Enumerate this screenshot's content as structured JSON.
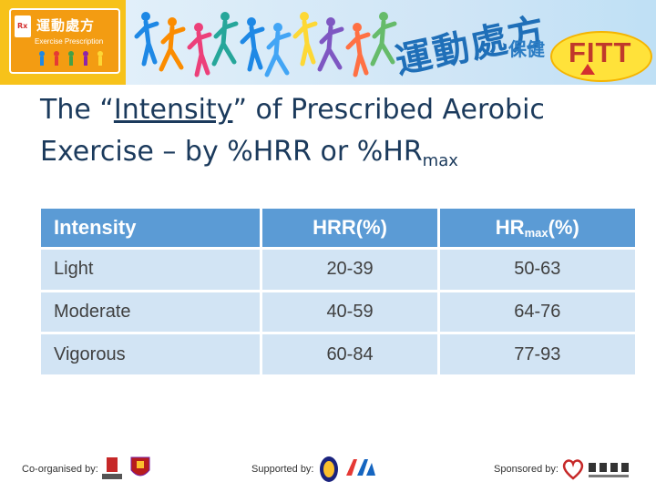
{
  "banner": {
    "logo_title": "運動處方",
    "logo_subtitle": "Exercise Prescription",
    "slogan_large": "運動處方",
    "slogan_small": "保健",
    "fitt": "FITT",
    "figure_colors": [
      "#1e88e5",
      "#fb8c00",
      "#ec407a",
      "#26a69a",
      "#1e88e5",
      "#42a5f5",
      "#fdd835",
      "#7e57c2",
      "#ff7043",
      "#66bb6a"
    ]
  },
  "title": {
    "line1_prefix": "The “",
    "line1_underlined": "Intensity",
    "line1_suffix": "” of Prescribed Aerobic",
    "line2": "Exercise – by %HRR or %HR",
    "line2_sub": "max"
  },
  "table": {
    "headers": {
      "intensity": "Intensity",
      "hrr": "HRR(%)",
      "hrmax_main": "HR",
      "hrmax_sub": "max",
      "hrmax_unit": "(%)"
    },
    "rows": [
      {
        "intensity": "Light",
        "hrr": "20-39",
        "hrmax": "50-63"
      },
      {
        "intensity": "Moderate",
        "hrr": "40-59",
        "hrmax": "64-76"
      },
      {
        "intensity": "Vigorous",
        "hrr": "60-84",
        "hrmax": "77-93"
      }
    ]
  },
  "footer": {
    "co_organised": "Co-organised by:",
    "supported": "Supported by:",
    "sponsored": "Sponsored by:"
  },
  "colors": {
    "header_bg": "#5b9bd5",
    "row_bg": "#d2e4f4",
    "title_text": "#1b3a5c"
  }
}
